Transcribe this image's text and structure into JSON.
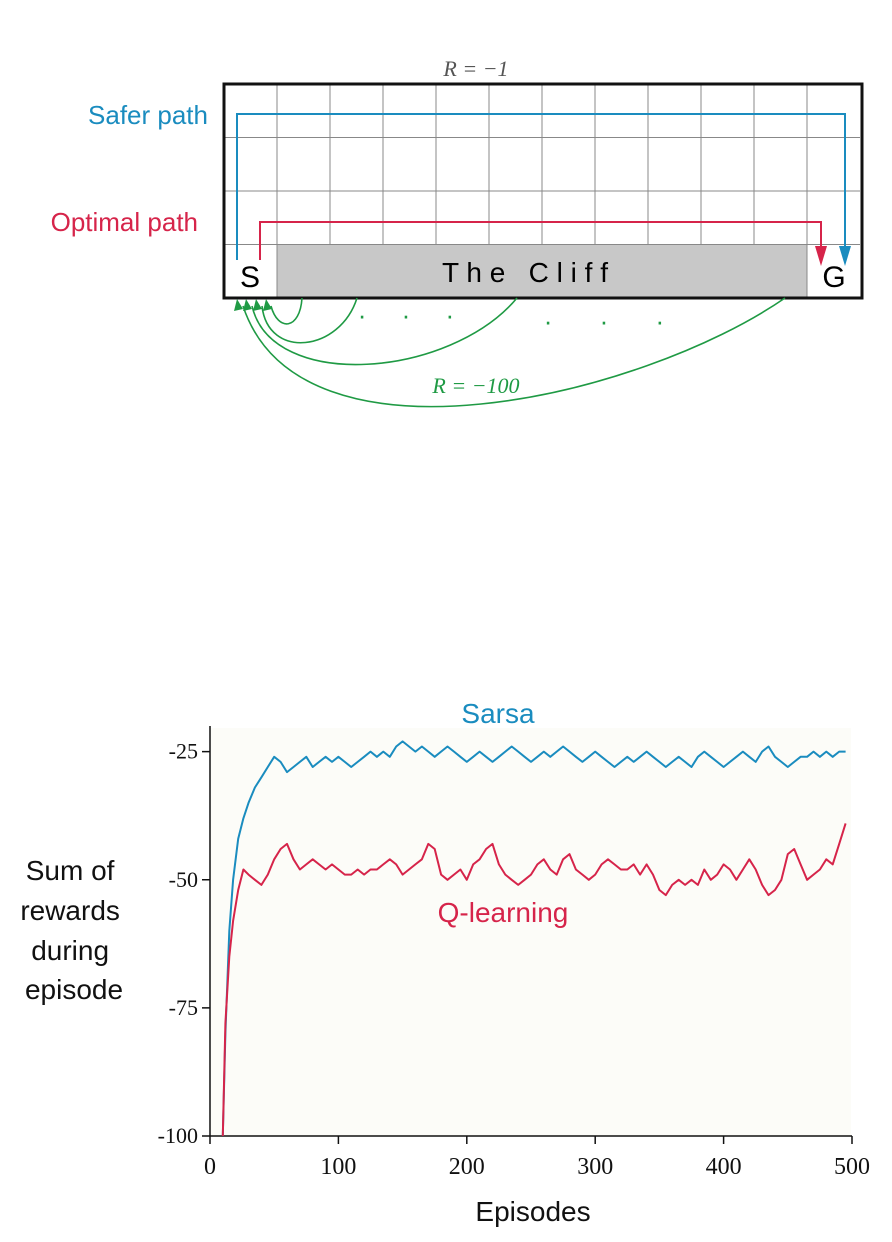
{
  "colors": {
    "safer": "#1a8cbf",
    "optimal": "#d6244a",
    "fall": "#1f9a44",
    "cliff_fill": "#c8c8c8",
    "grid_line": "#888888",
    "border": "#111111"
  },
  "gridworld": {
    "columns": 12,
    "rows": 4,
    "top_reward_label": "R = −1",
    "safer_label": "Safer path",
    "optimal_label": "Optimal path",
    "start_label": "S",
    "goal_label": "G",
    "cliff_label": "T h e   C l i f f",
    "fall_reward_label": "R = −100",
    "ellipsis_dots": "· · ·"
  },
  "chart_data": {
    "type": "line",
    "title": "",
    "xlabel": "Episodes",
    "ylabel": [
      "Sum of",
      "rewards",
      "during",
      "episode"
    ],
    "xlim": [
      0,
      500
    ],
    "ylim": [
      -100,
      -20
    ],
    "xticks": [
      0,
      100,
      200,
      300,
      400,
      500
    ],
    "yticks": [
      -25,
      -50,
      -75,
      -100
    ],
    "legend": "inline labels",
    "series": [
      {
        "name": "Sarsa",
        "color": "#1a8cbf",
        "x": [
          10,
          12,
          15,
          18,
          22,
          26,
          30,
          35,
          40,
          45,
          50,
          55,
          60,
          65,
          70,
          75,
          80,
          85,
          90,
          95,
          100,
          105,
          110,
          115,
          120,
          125,
          130,
          135,
          140,
          145,
          150,
          155,
          160,
          165,
          170,
          175,
          180,
          185,
          190,
          195,
          200,
          205,
          210,
          215,
          220,
          225,
          230,
          235,
          240,
          245,
          250,
          255,
          260,
          265,
          270,
          275,
          280,
          285,
          290,
          295,
          300,
          305,
          310,
          315,
          320,
          325,
          330,
          335,
          340,
          345,
          350,
          355,
          360,
          365,
          370,
          375,
          380,
          385,
          390,
          395,
          400,
          405,
          410,
          415,
          420,
          425,
          430,
          435,
          440,
          445,
          450,
          455,
          460,
          465,
          470,
          475,
          480,
          485,
          490,
          495
        ],
        "y": [
          -100,
          -80,
          -60,
          -50,
          -42,
          -38,
          -35,
          -32,
          -30,
          -28,
          -26,
          -27,
          -29,
          -28,
          -27,
          -26,
          -28,
          -27,
          -26,
          -27,
          -26,
          -27,
          -28,
          -27,
          -26,
          -25,
          -26,
          -25,
          -26,
          -24,
          -23,
          -24,
          -25,
          -24,
          -25,
          -26,
          -25,
          -24,
          -25,
          -26,
          -27,
          -26,
          -25,
          -26,
          -27,
          -26,
          -25,
          -24,
          -25,
          -26,
          -27,
          -26,
          -25,
          -26,
          -25,
          -24,
          -25,
          -26,
          -27,
          -26,
          -25,
          -26,
          -27,
          -28,
          -27,
          -26,
          -27,
          -26,
          -25,
          -26,
          -27,
          -28,
          -27,
          -26,
          -27,
          -28,
          -26,
          -25,
          -26,
          -27,
          -28,
          -27,
          -26,
          -25,
          -26,
          -27,
          -25,
          -24,
          -26,
          -27,
          -28,
          -27,
          -26,
          -26,
          -25,
          -26,
          -25,
          -26,
          -25,
          -25
        ]
      },
      {
        "name": "Q-learning",
        "color": "#d6244a",
        "x": [
          10,
          12,
          15,
          18,
          22,
          26,
          30,
          35,
          40,
          45,
          50,
          55,
          60,
          65,
          70,
          75,
          80,
          85,
          90,
          95,
          100,
          105,
          110,
          115,
          120,
          125,
          130,
          135,
          140,
          145,
          150,
          155,
          160,
          165,
          170,
          175,
          180,
          185,
          190,
          195,
          200,
          205,
          210,
          215,
          220,
          225,
          230,
          235,
          240,
          245,
          250,
          255,
          260,
          265,
          270,
          275,
          280,
          285,
          290,
          295,
          300,
          305,
          310,
          315,
          320,
          325,
          330,
          335,
          340,
          345,
          350,
          355,
          360,
          365,
          370,
          375,
          380,
          385,
          390,
          395,
          400,
          405,
          410,
          415,
          420,
          425,
          430,
          435,
          440,
          445,
          450,
          455,
          460,
          465,
          470,
          475,
          480,
          485,
          490,
          495
        ],
        "y": [
          -100,
          -78,
          -65,
          -58,
          -52,
          -48,
          -49,
          -50,
          -51,
          -49,
          -46,
          -44,
          -43,
          -46,
          -48,
          -47,
          -46,
          -47,
          -48,
          -47,
          -48,
          -49,
          -49,
          -48,
          -49,
          -48,
          -48,
          -47,
          -46,
          -47,
          -49,
          -48,
          -47,
          -46,
          -43,
          -44,
          -49,
          -50,
          -49,
          -48,
          -50,
          -47,
          -46,
          -44,
          -43,
          -47,
          -49,
          -50,
          -51,
          -50,
          -49,
          -47,
          -46,
          -48,
          -49,
          -46,
          -45,
          -48,
          -49,
          -50,
          -49,
          -47,
          -46,
          -47,
          -48,
          -48,
          -47,
          -49,
          -47,
          -49,
          -52,
          -53,
          -51,
          -50,
          -51,
          -50,
          -51,
          -48,
          -50,
          -49,
          -47,
          -48,
          -50,
          -48,
          -46,
          -48,
          -51,
          -53,
          -52,
          -50,
          -45,
          -44,
          -47,
          -50,
          -49,
          -48,
          -46,
          -47,
          -43,
          -39
        ]
      }
    ]
  }
}
